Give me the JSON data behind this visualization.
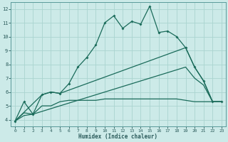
{
  "xlabel": "Humidex (Indice chaleur)",
  "background_color": "#cceae8",
  "grid_color": "#aad4d0",
  "line_color": "#1a6b5a",
  "axis_color": "#2a5a5a",
  "xlim": [
    -0.5,
    23.5
  ],
  "ylim": [
    3.5,
    12.5
  ],
  "xticks": [
    0,
    1,
    2,
    3,
    4,
    5,
    6,
    7,
    8,
    9,
    10,
    11,
    12,
    13,
    14,
    15,
    16,
    17,
    18,
    19,
    20,
    21,
    22,
    23
  ],
  "yticks": [
    4,
    5,
    6,
    7,
    8,
    9,
    10,
    11,
    12
  ],
  "line1_x": [
    0,
    1,
    2,
    3,
    4,
    5,
    6,
    7,
    8,
    9,
    10,
    11,
    12,
    13,
    14,
    15,
    16,
    17,
    18,
    19,
    20,
    21,
    22,
    23
  ],
  "line1_y": [
    3.9,
    5.3,
    4.4,
    5.8,
    6.0,
    5.9,
    6.6,
    7.8,
    8.5,
    9.4,
    11.0,
    11.5,
    10.6,
    11.1,
    10.9,
    12.2,
    10.3,
    10.4,
    10.0,
    9.2,
    7.8,
    6.8,
    5.3,
    5.3
  ],
  "line2_x": [
    0,
    1,
    2,
    3,
    4,
    5,
    6,
    7,
    8,
    9,
    10,
    11,
    12,
    13,
    14,
    15,
    16,
    17,
    18,
    19,
    20,
    21,
    22,
    23
  ],
  "line2_y": [
    3.9,
    4.5,
    4.4,
    5.0,
    5.0,
    5.3,
    5.4,
    5.4,
    5.4,
    5.4,
    5.5,
    5.5,
    5.5,
    5.5,
    5.5,
    5.5,
    5.5,
    5.5,
    5.5,
    5.4,
    5.3,
    5.3,
    5.3,
    5.3
  ],
  "line3_x": [
    0,
    3,
    4,
    5,
    19,
    20,
    21,
    22,
    23
  ],
  "line3_y": [
    3.9,
    5.8,
    6.0,
    5.9,
    9.2,
    7.8,
    6.8,
    5.3,
    5.3
  ],
  "line4_x": [
    0,
    1,
    2,
    3,
    4,
    5,
    6,
    7,
    8,
    9,
    10,
    11,
    12,
    13,
    14,
    15,
    16,
    17,
    18,
    19,
    20,
    21,
    22,
    23
  ],
  "line4_y": [
    3.9,
    4.3,
    4.4,
    4.6,
    4.8,
    5.0,
    5.2,
    5.4,
    5.6,
    5.8,
    6.0,
    6.2,
    6.4,
    6.6,
    6.8,
    7.0,
    7.2,
    7.4,
    7.6,
    7.8,
    7.0,
    6.5,
    5.3,
    5.3
  ]
}
